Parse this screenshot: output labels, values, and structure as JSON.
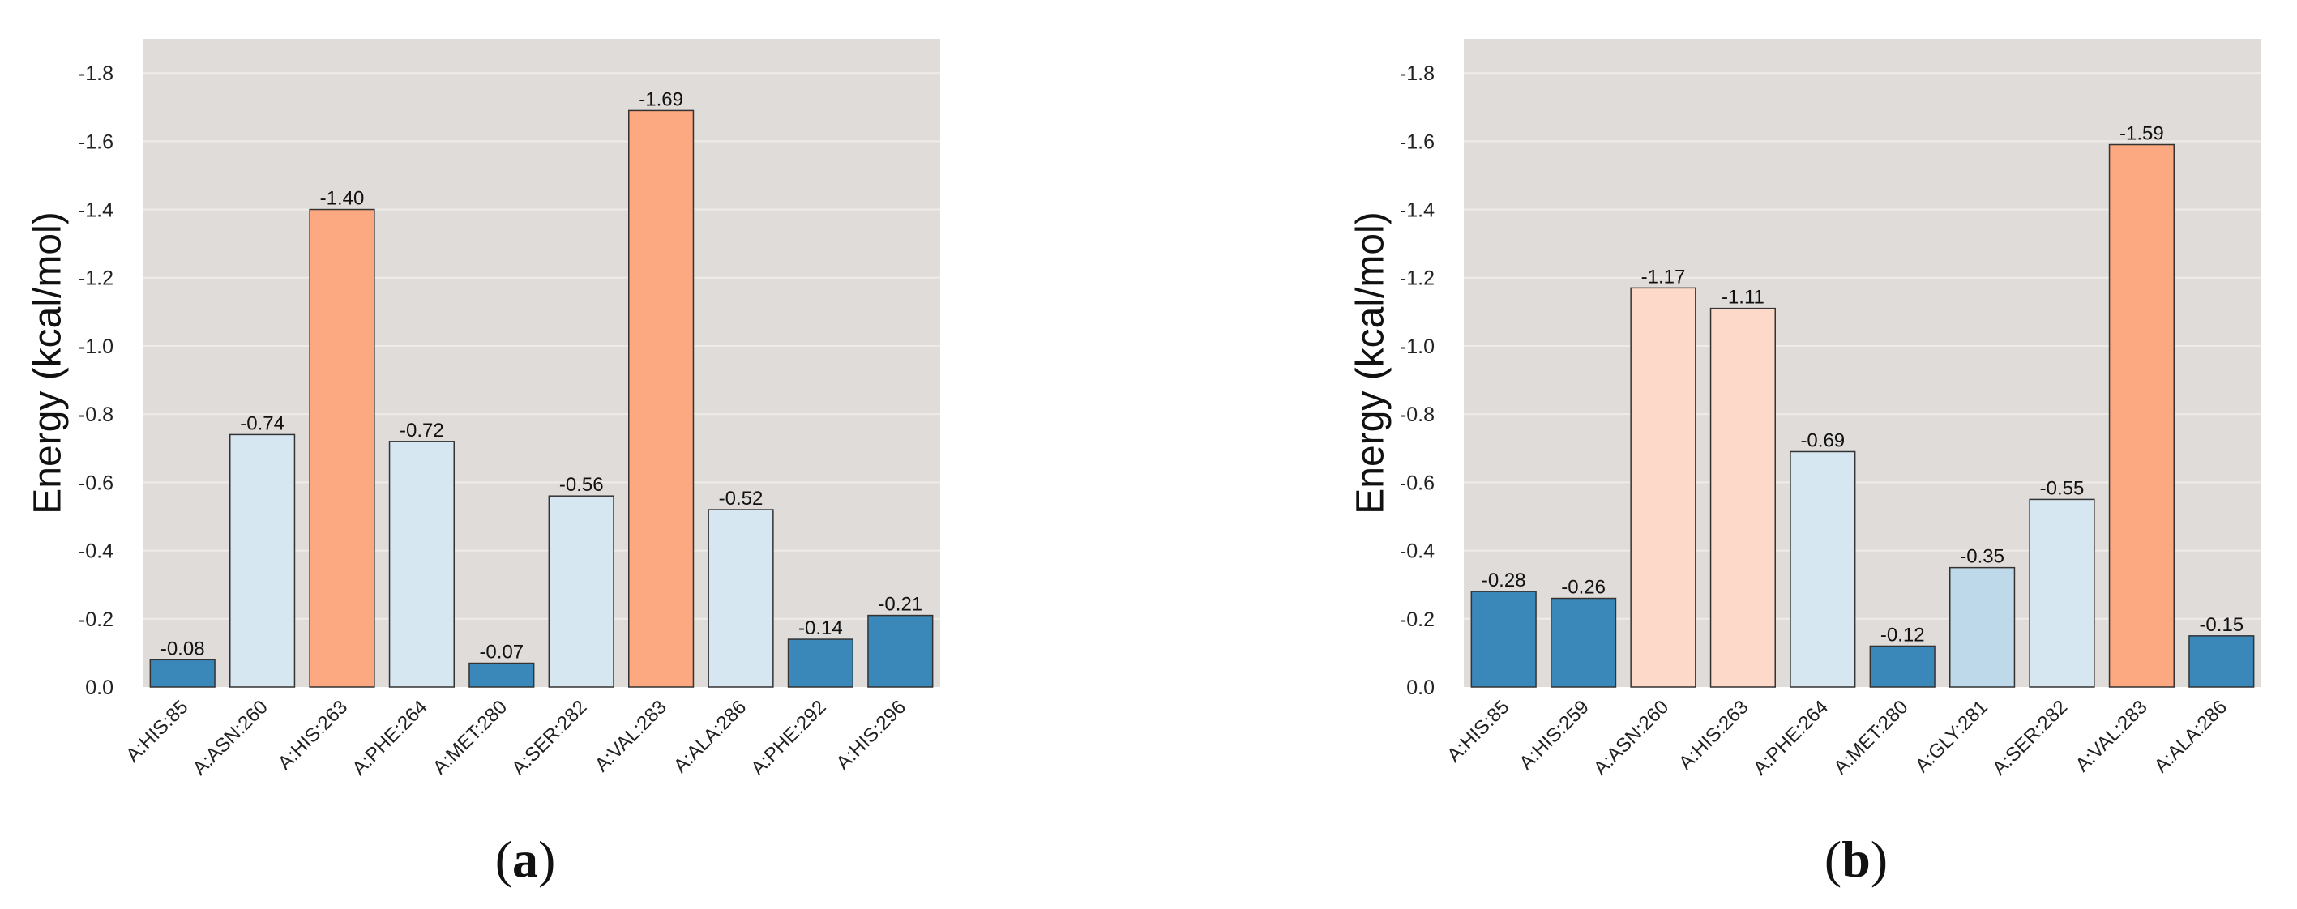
{
  "chart_data": [
    {
      "type": "bar",
      "panel_label": "a",
      "ylabel": "Energy (kcal/mol)",
      "ylim": [
        0,
        -1.9
      ],
      "yticks": [
        "0.0",
        "-0.2",
        "-0.4",
        "-0.6",
        "-0.8",
        "-1.0",
        "-1.2",
        "-1.4",
        "-1.6",
        "-1.8"
      ],
      "ytick_values": [
        0,
        -0.2,
        -0.4,
        -0.6,
        -0.8,
        -1.0,
        -1.2,
        -1.4,
        -1.6,
        -1.8
      ],
      "grid": true,
      "categories": [
        "A:HIS:85",
        "A:ASN:260",
        "A:HIS:263",
        "A:PHE:264",
        "A:MET:280",
        "A:SER:282",
        "A:VAL:283",
        "A:ALA:286",
        "A:PHE:292",
        "A:HIS:296"
      ],
      "values": [
        -0.08,
        -0.74,
        -1.4,
        -0.72,
        -0.07,
        -0.56,
        -1.69,
        -0.52,
        -0.14,
        -0.21
      ],
      "value_labels": [
        "-0.08",
        "-0.74",
        "-1.40",
        "-0.72",
        "-0.07",
        "-0.56",
        "-1.69",
        "-0.52",
        "-0.14",
        "-0.21"
      ],
      "bar_colors": [
        "#3a87b9",
        "#d7e7f2",
        "#fca880",
        "#d7e7f2",
        "#3a87b9",
        "#d7e7f2",
        "#fca880",
        "#d7e7f2",
        "#3a87b9",
        "#3a87b9"
      ]
    },
    {
      "type": "bar",
      "panel_label": "b",
      "ylabel": "Energy (kcal/mol)",
      "ylim": [
        0,
        -1.9
      ],
      "yticks": [
        "0.0",
        "-0.2",
        "-0.4",
        "-0.6",
        "-0.8",
        "-1.0",
        "-1.2",
        "-1.4",
        "-1.6",
        "-1.8"
      ],
      "ytick_values": [
        0,
        -0.2,
        -0.4,
        -0.6,
        -0.8,
        -1.0,
        -1.2,
        -1.4,
        -1.6,
        -1.8
      ],
      "grid": true,
      "categories": [
        "A:HIS:85",
        "A:HIS:259",
        "A:ASN:260",
        "A:HIS:263",
        "A:PHE:264",
        "A:MET:280",
        "A:GLY:281",
        "A:SER:282",
        "A:VAL:283",
        "A:ALA:286"
      ],
      "values": [
        -0.28,
        -0.26,
        -1.17,
        -1.11,
        -0.69,
        -0.12,
        -0.35,
        -0.55,
        -1.59,
        -0.15
      ],
      "value_labels": [
        "-0.28",
        "-0.26",
        "-1.17",
        "-1.11",
        "-0.69",
        "-0.12",
        "-0.35",
        "-0.55",
        "-1.59",
        "-0.15"
      ],
      "bar_colors": [
        "#3a87b9",
        "#3a87b9",
        "#fcd9c8",
        "#fcd9c8",
        "#d7e7f2",
        "#3a87b9",
        "#bed9ea",
        "#d7e7f2",
        "#fca880",
        "#3a87b9"
      ]
    }
  ],
  "style": {
    "plot_background": "#e0dcda",
    "grid_color": "#efebe9",
    "bar_edge": "#333333"
  }
}
